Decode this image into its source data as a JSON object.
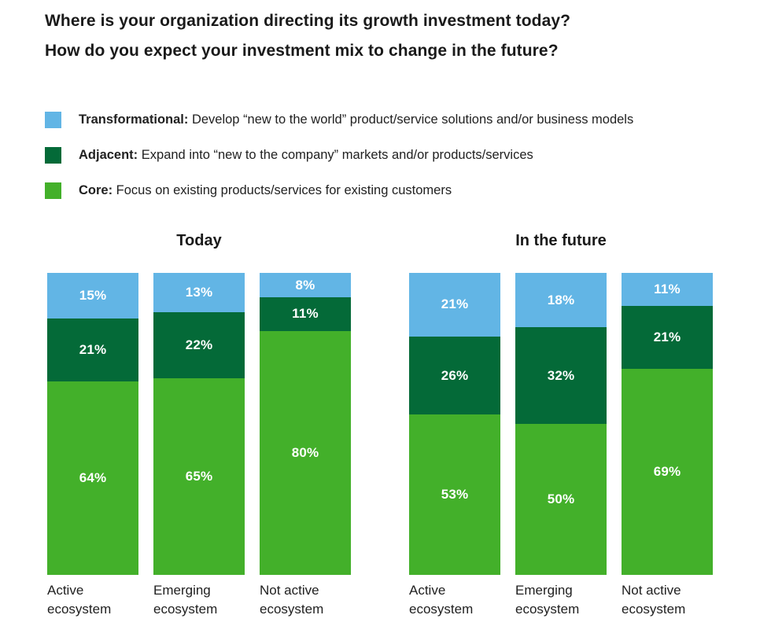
{
  "page_title": {
    "line1": "Where is your organization directing its growth investment today?",
    "line2": "How do you expect your investment mix to change in the future?"
  },
  "legend": {
    "items": [
      {
        "term": "Transformational:",
        "desc": " Develop “new to the world” product/service solutions and/or business models",
        "color": "#62B5E5"
      },
      {
        "term": "Adjacent:",
        "desc": " Expand into “new to the company” markets and/or products/services",
        "color": "#046A38"
      },
      {
        "term": "Core:",
        "desc": " Focus on existing products/services for existing customers",
        "color": "#43B02A"
      }
    ]
  },
  "colors": {
    "transformational": "#62B5E5",
    "adjacent": "#046A38",
    "core": "#43B02A",
    "text_dark": "#1a1a1a",
    "value_label": "#ffffff"
  },
  "chart_data": [
    {
      "type": "bar",
      "stacked": true,
      "title": "Today",
      "unit": "%",
      "ylim": [
        0,
        100
      ],
      "grid": false,
      "legend_position": "top-left",
      "value_labels": "inside-white",
      "categories": [
        "Active ecosystem",
        "Emerging ecosystem",
        "Not active ecosystem"
      ],
      "series": [
        {
          "name": "Transformational",
          "color": "#62B5E5",
          "values": [
            15,
            13,
            8
          ]
        },
        {
          "name": "Adjacent",
          "color": "#046A38",
          "values": [
            21,
            22,
            11
          ]
        },
        {
          "name": "Core",
          "color": "#43B02A",
          "values": [
            64,
            65,
            80
          ]
        }
      ]
    },
    {
      "type": "bar",
      "stacked": true,
      "title": "In the future",
      "unit": "%",
      "ylim": [
        0,
        100
      ],
      "grid": false,
      "legend_position": "top-left",
      "value_labels": "inside-white",
      "categories": [
        "Active ecosystem",
        "Emerging ecosystem",
        "Not active ecosystem"
      ],
      "series": [
        {
          "name": "Transformational",
          "color": "#62B5E5",
          "values": [
            21,
            18,
            11
          ]
        },
        {
          "name": "Adjacent",
          "color": "#046A38",
          "values": [
            26,
            32,
            21
          ]
        },
        {
          "name": "Core",
          "color": "#43B02A",
          "values": [
            53,
            50,
            69
          ]
        }
      ]
    }
  ]
}
